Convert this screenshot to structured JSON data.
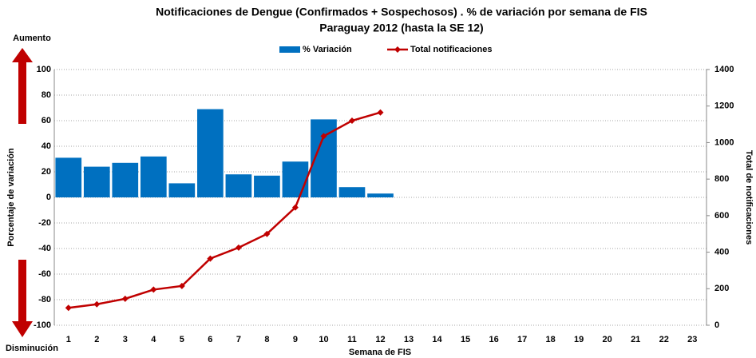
{
  "chart_data": {
    "type": "bar_line",
    "title": "Notificaciones de Dengue (Confirmados + Sospechosos) . % de variación por semana de FIS",
    "subtitle": "Paraguay 2012 (hasta la SE 12)",
    "x_label": "Semana de FIS",
    "y_label": "Porcentaje de variación",
    "y2_label": "Total de notificaciones",
    "annotations": [
      "Aumento",
      "Disminución"
    ],
    "categories": [
      "1",
      "2",
      "3",
      "4",
      "5",
      "6",
      "7",
      "8",
      "9",
      "10",
      "11",
      "12",
      "13",
      "14",
      "15",
      "16",
      "17",
      "18",
      "19",
      "20",
      "21",
      "22",
      "23"
    ],
    "series": [
      {
        "name": "% Variación",
        "type": "bar",
        "color": "#0070c0",
        "axis": "y",
        "values": [
          31,
          24,
          27,
          32,
          11,
          69,
          18,
          17,
          28,
          61,
          8,
          3,
          null,
          null,
          null,
          null,
          null,
          null,
          null,
          null,
          null,
          null,
          null
        ]
      },
      {
        "name": "Total notificaciones",
        "type": "line",
        "color": "#c00000",
        "axis": "y2",
        "values": [
          95,
          115,
          145,
          195,
          215,
          365,
          425,
          500,
          645,
          1035,
          1120,
          1165,
          null,
          null,
          null,
          null,
          null,
          null,
          null,
          null,
          null,
          null,
          null
        ]
      }
    ],
    "ylim": [
      -100,
      100
    ],
    "yticks": [
      -100,
      -80,
      -60,
      -40,
      -20,
      0,
      20,
      40,
      60,
      80,
      100
    ],
    "y2lim": [
      0,
      1400
    ],
    "y2ticks": [
      0,
      200,
      400,
      600,
      800,
      1000,
      1200,
      1400
    ],
    "grid": true
  }
}
